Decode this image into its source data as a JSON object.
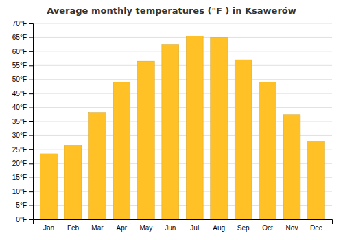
{
  "chart_data": {
    "type": "bar",
    "title": "Average monthly temperatures (°F ) in Ksawerów",
    "categories": [
      "Jan",
      "Feb",
      "Mar",
      "Apr",
      "May",
      "Jun",
      "Jul",
      "Aug",
      "Sep",
      "Oct",
      "Nov",
      "Dec"
    ],
    "values": [
      23.5,
      26.5,
      38.0,
      49.0,
      56.5,
      62.5,
      65.5,
      65.0,
      57.0,
      49.0,
      37.5,
      28.0
    ],
    "color": "#FFC125",
    "ylim": [
      0,
      70
    ],
    "yticks": [
      {
        "value": 0,
        "label": "0°F"
      },
      {
        "value": 5,
        "label": "5°F"
      },
      {
        "value": 10,
        "label": "10°F"
      },
      {
        "value": 15,
        "label": "15°F"
      },
      {
        "value": 20,
        "label": "20°F"
      },
      {
        "value": 25,
        "label": "25°F"
      },
      {
        "value": 30,
        "label": "30°F"
      },
      {
        "value": 35,
        "label": "35°F"
      },
      {
        "value": 40,
        "label": "40°F"
      },
      {
        "value": 45,
        "label": "45°F"
      },
      {
        "value": 50,
        "label": "50°F"
      },
      {
        "value": 55,
        "label": "55°F"
      },
      {
        "value": 60,
        "label": "60°F"
      },
      {
        "value": 65,
        "label": "65°F"
      },
      {
        "value": 70,
        "label": "70°F"
      }
    ],
    "grid": true
  }
}
